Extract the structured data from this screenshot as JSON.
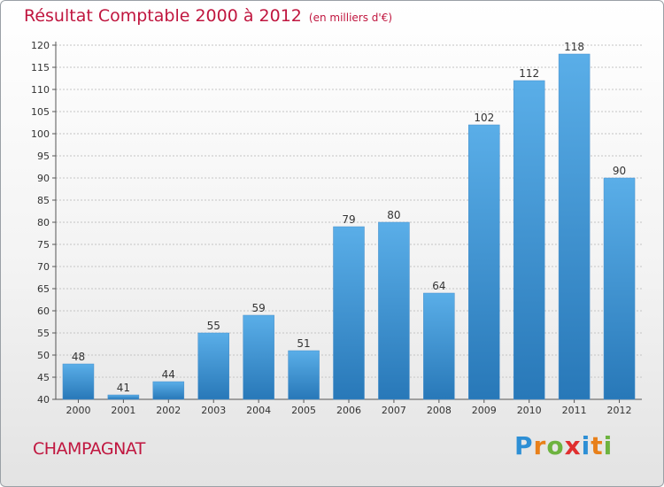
{
  "title": "Résultat Comptable 2000 à 2012",
  "subtitle": "(en milliers d'€)",
  "commune": "CHAMPAGNAT",
  "logo": {
    "letters": [
      "P",
      "r",
      "o",
      "x",
      "i",
      "t",
      "i"
    ],
    "colors": [
      "#2d8fd5",
      "#e8801a",
      "#6db33f",
      "#e02f2f",
      "#2d8fd5",
      "#e8801a",
      "#6db33f"
    ]
  },
  "colors": {
    "bar_top": "#5aaee8",
    "bar_bottom": "#2878b8",
    "title": "#c0163f"
  },
  "chart_data": {
    "type": "bar",
    "title": "Résultat Comptable 2000 à 2012",
    "subtitle": "(en milliers d'€)",
    "categories": [
      "2000",
      "2001",
      "2002",
      "2003",
      "2004",
      "2005",
      "2006",
      "2007",
      "2008",
      "2009",
      "2010",
      "2011",
      "2012"
    ],
    "values": [
      48,
      41,
      44,
      55,
      59,
      51,
      79,
      80,
      64,
      102,
      112,
      118,
      90
    ],
    "ylim": [
      40,
      120
    ],
    "yticks": [
      40,
      45,
      50,
      55,
      60,
      65,
      70,
      75,
      80,
      85,
      90,
      95,
      100,
      105,
      110,
      115,
      120
    ],
    "grid": true,
    "legend": "none"
  }
}
